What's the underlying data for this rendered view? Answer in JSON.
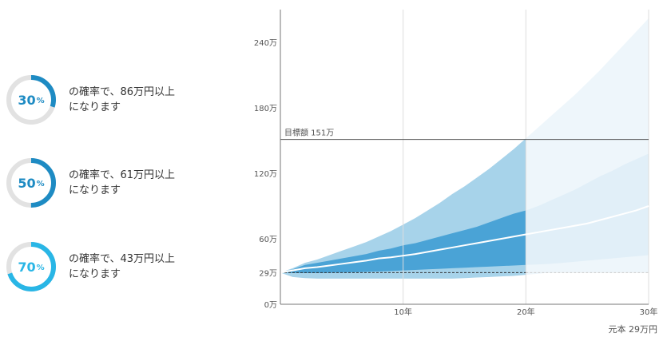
{
  "probabilities": [
    {
      "percent": "30",
      "unit": "%",
      "value": 0.3,
      "color": "#1e8bc3",
      "line1": "の確率で、86万円以上",
      "line2": "になります"
    },
    {
      "percent": "50",
      "unit": "%",
      "value": 0.5,
      "color": "#1e8bc3",
      "line1": "の確率で、61万円以上",
      "line2": "になります"
    },
    {
      "percent": "70",
      "unit": "%",
      "value": 0.7,
      "color": "#29b6e6",
      "line1": "の確率で、43万円以上",
      "line2": "になります"
    }
  ],
  "chart_data": {
    "type": "area",
    "x": [
      0,
      1,
      2,
      3,
      4,
      5,
      6,
      7,
      8,
      9,
      10,
      11,
      12,
      13,
      14,
      15,
      16,
      17,
      18,
      19,
      20,
      21,
      22,
      23,
      24,
      25,
      26,
      27,
      28,
      29,
      30
    ],
    "median": [
      29,
      31,
      33,
      34,
      35.5,
      37,
      38.5,
      40,
      42,
      43,
      44.5,
      46,
      48,
      50,
      52,
      54,
      56,
      58,
      60,
      62,
      64,
      66,
      68,
      70,
      72,
      74,
      77,
      80,
      83,
      86,
      90
    ],
    "inner_low": [
      29,
      28.5,
      28.5,
      28.5,
      28.8,
      29,
      29.3,
      29.6,
      30,
      30.5,
      31,
      31.5,
      32,
      32.5,
      33,
      33.5,
      34,
      34.5,
      35,
      35.5,
      36,
      36.5,
      37,
      38,
      39,
      40,
      41,
      42,
      43,
      44,
      45
    ],
    "inner_high": [
      29,
      32,
      36,
      38,
      40,
      42,
      44,
      46,
      49,
      51,
      54,
      56,
      59,
      62,
      65,
      68,
      71,
      75,
      79,
      83,
      86,
      90,
      95,
      100,
      105,
      111,
      117,
      122,
      128,
      133,
      138
    ],
    "outer_low": [
      29,
      25,
      24,
      23.5,
      23.5,
      23.5,
      23.5,
      23.5,
      23.5,
      23.5,
      23.5,
      23.5,
      23.5,
      23.5,
      23.5,
      24,
      24.5,
      25,
      25.5,
      26,
      27,
      28,
      29,
      29,
      29,
      29,
      29,
      29,
      29,
      29,
      29
    ],
    "outer_high": [
      29,
      33,
      38,
      41,
      45,
      49,
      53,
      57,
      62,
      67,
      73,
      79,
      86,
      93,
      101,
      108,
      116,
      124,
      133,
      142,
      152,
      162,
      172,
      182,
      192,
      203,
      214,
      226,
      238,
      250,
      262
    ],
    "solid_until": 20,
    "target": {
      "value": 151,
      "label": "目標額 151万"
    },
    "principal": {
      "value": 29
    },
    "ylim": [
      0,
      270
    ],
    "xlim": [
      0,
      30
    ],
    "yticks": [
      {
        "value": 0,
        "label": "0万"
      },
      {
        "value": 29,
        "label": "29万"
      },
      {
        "value": 60,
        "label": "60万"
      },
      {
        "value": 120,
        "label": "120万"
      },
      {
        "value": 180,
        "label": "180万"
      },
      {
        "value": 240,
        "label": "240万"
      }
    ],
    "xticks": [
      {
        "value": 10,
        "label": "10年"
      },
      {
        "value": 20,
        "label": "20年"
      },
      {
        "value": 30,
        "label": "30年"
      }
    ],
    "colors": {
      "outer": "#a7d3ea",
      "inner": "#4aa3d6",
      "outer_faded": "#eef6fb",
      "inner_faded": "#e1eff8",
      "median": "#ffffff",
      "target_line": "#555555",
      "grid": "#dddddd"
    }
  },
  "footer": {
    "principal_note": "元本 29万円"
  }
}
